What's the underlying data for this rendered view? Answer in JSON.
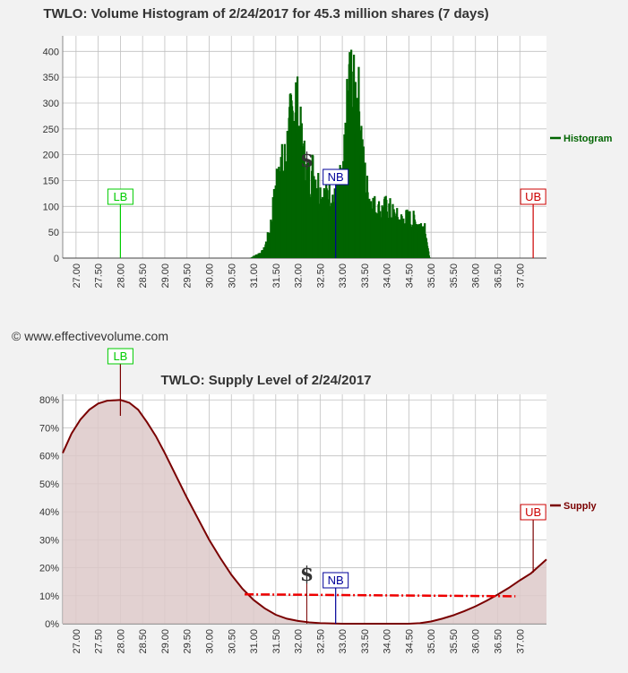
{
  "copyright": "© www.effectivevolume.com",
  "colors": {
    "histogram": "#006400",
    "supply_line": "#7a0000",
    "supply_fill": "#ddc9c9",
    "lb": "#00cc00",
    "nb": "#000099",
    "ub": "#cc0000",
    "dashed": "#ee0000",
    "grid": "#c0c0c0",
    "plot_bg": "#ffffff"
  },
  "markers": {
    "lb": {
      "label": "LB",
      "x": 28.0
    },
    "nb": {
      "label": "NB",
      "x": 32.85
    },
    "ub": {
      "label": "UB",
      "x": 37.3
    },
    "dollar": {
      "label": "$",
      "x": 32.2
    }
  },
  "chart_data": [
    {
      "type": "bar",
      "title": "TWLO: Volume Histogram of 2/24/2017 for 45.3 million shares (7 days)",
      "legend": "Histogram",
      "legend_position": "right",
      "xlim": [
        26.7,
        37.6
      ],
      "ylim": [
        0,
        430
      ],
      "x_ticks": [
        "27.00",
        "27.50",
        "28.00",
        "28.50",
        "29.00",
        "29.50",
        "30.00",
        "30.50",
        "31.00",
        "31.50",
        "32.00",
        "32.50",
        "33.00",
        "33.50",
        "34.00",
        "34.50",
        "35.00",
        "35.50",
        "36.00",
        "36.50",
        "37.00"
      ],
      "y_ticks": [
        0,
        50,
        100,
        150,
        200,
        250,
        300,
        350,
        400
      ],
      "grid": true,
      "profile": [
        [
          30.9,
          0
        ],
        [
          31.0,
          5
        ],
        [
          31.2,
          15
        ],
        [
          31.35,
          60
        ],
        [
          31.45,
          130
        ],
        [
          31.55,
          210
        ],
        [
          31.65,
          190
        ],
        [
          31.75,
          250
        ],
        [
          31.85,
          310
        ],
        [
          31.93,
          350
        ],
        [
          32.0,
          280
        ],
        [
          32.1,
          220
        ],
        [
          32.2,
          170
        ],
        [
          32.3,
          190
        ],
        [
          32.4,
          170
        ],
        [
          32.5,
          140
        ],
        [
          32.6,
          130
        ],
        [
          32.7,
          150
        ],
        [
          32.8,
          120
        ],
        [
          32.9,
          155
        ],
        [
          33.0,
          170
        ],
        [
          33.08,
          300
        ],
        [
          33.15,
          395
        ],
        [
          33.22,
          340
        ],
        [
          33.3,
          355
        ],
        [
          33.38,
          310
        ],
        [
          33.45,
          200
        ],
        [
          33.55,
          140
        ],
        [
          33.7,
          110
        ],
        [
          33.85,
          100
        ],
        [
          34.0,
          110
        ],
        [
          34.15,
          90
        ],
        [
          34.3,
          80
        ],
        [
          34.45,
          85
        ],
        [
          34.6,
          80
        ],
        [
          34.75,
          70
        ],
        [
          34.85,
          72
        ],
        [
          34.9,
          20
        ],
        [
          34.95,
          0
        ]
      ]
    },
    {
      "type": "area",
      "title": "TWLO: Supply Level of 2/24/2017",
      "legend": "Supply",
      "legend_position": "right",
      "xlim": [
        26.7,
        37.6
      ],
      "ylim": [
        0,
        0.82
      ],
      "x_ticks": [
        "27.00",
        "27.50",
        "28.00",
        "28.50",
        "29.00",
        "29.50",
        "30.00",
        "30.50",
        "31.00",
        "31.50",
        "32.00",
        "32.50",
        "33.00",
        "33.50",
        "34.00",
        "34.50",
        "35.00",
        "35.50",
        "36.00",
        "36.50",
        "37.00"
      ],
      "y_ticks": [
        "0%",
        "10%",
        "20%",
        "30%",
        "40%",
        "50%",
        "60%",
        "70%",
        "80%"
      ],
      "grid": true,
      "points": [
        [
          26.7,
          0.61
        ],
        [
          26.9,
          0.68
        ],
        [
          27.1,
          0.73
        ],
        [
          27.3,
          0.765
        ],
        [
          27.5,
          0.787
        ],
        [
          27.7,
          0.797
        ],
        [
          28.0,
          0.8
        ],
        [
          28.2,
          0.79
        ],
        [
          28.4,
          0.765
        ],
        [
          28.6,
          0.72
        ],
        [
          28.8,
          0.67
        ],
        [
          29.0,
          0.61
        ],
        [
          29.25,
          0.53
        ],
        [
          29.5,
          0.45
        ],
        [
          29.75,
          0.375
        ],
        [
          30.0,
          0.3
        ],
        [
          30.25,
          0.235
        ],
        [
          30.5,
          0.175
        ],
        [
          30.75,
          0.125
        ],
        [
          31.0,
          0.085
        ],
        [
          31.25,
          0.055
        ],
        [
          31.5,
          0.032
        ],
        [
          31.75,
          0.018
        ],
        [
          32.0,
          0.01
        ],
        [
          32.25,
          0.005
        ],
        [
          32.5,
          0.002
        ],
        [
          33.0,
          0.0
        ],
        [
          33.5,
          0.0
        ],
        [
          34.0,
          0.0
        ],
        [
          34.5,
          0.0
        ],
        [
          34.75,
          0.002
        ],
        [
          35.0,
          0.008
        ],
        [
          35.25,
          0.018
        ],
        [
          35.5,
          0.03
        ],
        [
          35.75,
          0.045
        ],
        [
          36.0,
          0.062
        ],
        [
          36.25,
          0.082
        ],
        [
          36.5,
          0.104
        ],
        [
          36.75,
          0.128
        ],
        [
          37.0,
          0.155
        ],
        [
          37.25,
          0.18
        ],
        [
          37.6,
          0.23
        ]
      ],
      "dashed_level": {
        "x0": 30.8,
        "x1": 36.9,
        "y0": 0.105,
        "y1": 0.098
      }
    }
  ]
}
